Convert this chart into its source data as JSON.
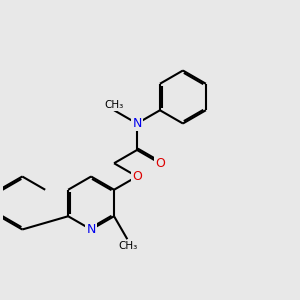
{
  "background_color": "#e8e8e8",
  "bond_color": "#000000",
  "bond_width": 1.5,
  "dbo": 0.055,
  "figsize": [
    3.0,
    3.0
  ],
  "dpi": 100,
  "colors": {
    "N": "#0000ee",
    "O": "#dd0000",
    "C": "#000000"
  }
}
